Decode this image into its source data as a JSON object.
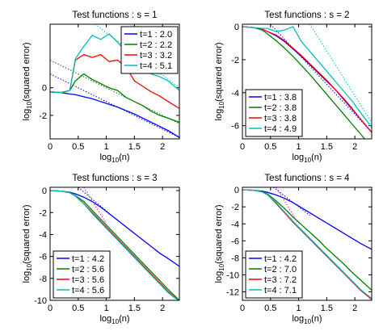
{
  "chart_data": [
    {
      "type": "line",
      "title": "Test functions : s = 1",
      "xlabel": [
        "log",
        "10",
        "(n)"
      ],
      "ylabel": [
        "log",
        "10",
        "(squared error)"
      ],
      "x": [
        0,
        0.2,
        0.35,
        0.45,
        0.6,
        0.75,
        0.9,
        1.05,
        1.2,
        1.35,
        1.5,
        1.65,
        1.8,
        1.95,
        2.1,
        2.3
      ],
      "xlim": [
        0,
        2.3
      ],
      "xticks": [
        0,
        0.5,
        1,
        1.5,
        2
      ],
      "ylim": [
        -3.7,
        4.6
      ],
      "yticks": [
        -2,
        0
      ],
      "legend": "upper right",
      "series": [
        {
          "name": "t=1 : 2.0",
          "color": "#0000ff",
          "values": [
            -0.3,
            -0.35,
            -0.45,
            -0.5,
            -0.65,
            -0.8,
            -1,
            -1.2,
            -1.4,
            -1.65,
            -1.9,
            -2.2,
            -2.5,
            -2.8,
            -3.1,
            -3.6
          ]
        },
        {
          "name": "t=2 : 2.2",
          "color": "#007f00",
          "values": [
            -0.3,
            -0.35,
            -0.2,
            0.5,
            1.0,
            0.6,
            0.3,
            0.0,
            -0.2,
            -0.7,
            -1.0,
            -1.3,
            -1.7,
            -2.0,
            -2.2,
            -2.5
          ]
        },
        {
          "name": "t=3 : 3.2",
          "color": "#ff0000",
          "values": [
            -0.3,
            -0.35,
            -0.2,
            2.0,
            2.4,
            2.2,
            2.4,
            1.9,
            2.0,
            1.5,
            0.5,
            0.1,
            -0.3,
            -0.6,
            -1.0,
            -1.5
          ]
        },
        {
          "name": "t=4 : 5.1",
          "color": "#00bfbf",
          "values": [
            -0.3,
            -0.35,
            -0.2,
            2.1,
            3.0,
            3.8,
            3.5,
            3.9,
            3.3,
            2.6,
            2.0,
            1.6,
            1.0,
            0.8,
            0.5,
            -0.2
          ]
        }
      ],
      "fits": [
        {
          "color": "#0000ff",
          "x": [
            0,
            2.3
          ],
          "values": [
            1,
            -3.6
          ]
        },
        {
          "color": "#007f00",
          "x": [
            0,
            2.3
          ],
          "values": [
            2,
            -2.6
          ]
        },
        {
          "color": "#00bfbf",
          "x": [
            0.8,
            2.3
          ],
          "values": [
            4.6,
            0
          ]
        }
      ]
    },
    {
      "type": "line",
      "title": "Test functions : s = 2",
      "xlabel": [
        "log",
        "10",
        "(n)"
      ],
      "ylabel": [
        "log",
        "10",
        "(squared error)"
      ],
      "x": [
        0,
        0.2,
        0.35,
        0.45,
        0.6,
        0.75,
        0.9,
        1.05,
        1.2,
        1.35,
        1.5,
        1.65,
        1.8,
        1.95,
        2.1,
        2.3
      ],
      "xlim": [
        0,
        2.3
      ],
      "xticks": [
        0,
        0.5,
        1,
        1.5,
        2
      ],
      "ylim": [
        -6.8,
        0.15
      ],
      "yticks": [
        -6,
        -4,
        -2,
        0
      ],
      "legend": "lower left",
      "series": [
        {
          "name": "t=1 : 3.8",
          "color": "#0000ff",
          "values": [
            0,
            -0.05,
            -0.15,
            -0.3,
            -0.55,
            -0.9,
            -1.35,
            -1.8,
            -2.3,
            -2.8,
            -3.3,
            -3.8,
            -4.4,
            -5.0,
            -5.6,
            -6.4
          ]
        },
        {
          "name": "t=2 : 3.8",
          "color": "#007f00",
          "values": [
            0,
            -0.05,
            -0.2,
            -0.45,
            -0.85,
            -1.3,
            -1.8,
            -2.35,
            -2.9,
            -3.5,
            -4.1,
            -4.7,
            -5.3,
            -5.9,
            -6.5,
            -7.3
          ]
        },
        {
          "name": "t=3 : 3.8",
          "color": "#ff0000",
          "values": [
            0,
            -0.05,
            -0.15,
            -0.3,
            -0.5,
            -0.85,
            -1.3,
            -1.75,
            -2.25,
            -2.75,
            -3.25,
            -3.8,
            -4.35,
            -4.95,
            -5.6,
            -6.4
          ]
        },
        {
          "name": "t=4 : 4.9",
          "color": "#00bfbf",
          "values": [
            0,
            -0.05,
            -0.1,
            -0.1,
            -0.3,
            -0.2,
            0,
            -0.9,
            -1.5,
            -2.1,
            -2.7,
            -3.3,
            -3.9,
            -4.5,
            -5.2,
            -6.1
          ]
        }
      ],
      "fits": [
        {
          "color": "#0000ff",
          "x": [
            0.5,
            2.3
          ],
          "values": [
            0.15,
            -6.4
          ]
        },
        {
          "color": "#00bfbf",
          "x": [
            1.2,
            2.3
          ],
          "values": [
            0.15,
            -5.8
          ]
        }
      ]
    },
    {
      "type": "line",
      "title": "Test functions : s = 3",
      "xlabel": [
        "log",
        "10",
        "(n)"
      ],
      "ylabel": [
        "log",
        "10",
        "(squared error)"
      ],
      "x": [
        0,
        0.2,
        0.35,
        0.45,
        0.6,
        0.75,
        0.9,
        1.05,
        1.2,
        1.35,
        1.5,
        1.65,
        1.8,
        1.95,
        2.1,
        2.3
      ],
      "xlim": [
        0,
        2.3
      ],
      "xticks": [
        0,
        0.5,
        1,
        1.5,
        2
      ],
      "ylim": [
        -10,
        0.3
      ],
      "yticks": [
        -10,
        -8,
        -6,
        -4,
        -2,
        0
      ],
      "legend": "lower left",
      "series": [
        {
          "name": "t=1 : 4.2",
          "color": "#0000ff",
          "values": [
            0,
            -0.05,
            -0.15,
            -0.3,
            -0.6,
            -1.0,
            -1.5,
            -2.1,
            -2.7,
            -3.3,
            -3.9,
            -4.5,
            -5.1,
            -5.7,
            -6.2,
            -6.9
          ]
        },
        {
          "name": "t=2 : 5.6",
          "color": "#007f00",
          "values": [
            0,
            -0.05,
            -0.2,
            -0.45,
            -1.0,
            -1.8,
            -2.6,
            -3.4,
            -4.2,
            -5.0,
            -5.8,
            -6.6,
            -7.4,
            -8.2,
            -9.0,
            -10
          ]
        },
        {
          "name": "t=3 : 5.6",
          "color": "#ff0000",
          "values": [
            0,
            -0.05,
            -0.2,
            -0.5,
            -1.2,
            -2.0,
            -2.8,
            -3.6,
            -4.4,
            -5.2,
            -6.0,
            -6.8,
            -7.6,
            -8.4,
            -9.2,
            -10.1
          ]
        },
        {
          "name": "t=4 : 5.6",
          "color": "#00bfbf",
          "values": [
            0,
            -0.05,
            -0.2,
            -0.5,
            -1.2,
            -2.1,
            -2.9,
            -3.7,
            -4.5,
            -5.3,
            -6.1,
            -6.9,
            -7.7,
            -8.5,
            -9.3,
            -10.1
          ]
        }
      ],
      "fits": [
        {
          "color": "#0000ff",
          "x": [
            0.5,
            1.2
          ],
          "values": [
            0.3,
            -2.7
          ]
        },
        {
          "color": "#ff00ff",
          "x": [
            0.6,
            1.0
          ],
          "values": [
            0.3,
            -3.0
          ]
        }
      ]
    },
    {
      "type": "line",
      "title": "Test functions : s = 4",
      "xlabel": [
        "log",
        "10",
        "(n)"
      ],
      "ylabel": [
        "log",
        "10",
        "(squared error)"
      ],
      "x": [
        0,
        0.2,
        0.35,
        0.45,
        0.6,
        0.75,
        0.9,
        1.05,
        1.2,
        1.35,
        1.5,
        1.65,
        1.8,
        1.95,
        2.1,
        2.3
      ],
      "xlim": [
        0,
        2.3
      ],
      "xticks": [
        0,
        0.5,
        1,
        1.5,
        2
      ],
      "ylim": [
        -13,
        0.3
      ],
      "yticks": [
        -12,
        -10,
        -8,
        -6,
        -4,
        -2,
        0
      ],
      "legend": "lower left",
      "series": [
        {
          "name": "t=1 : 4.2",
          "color": "#0000ff",
          "values": [
            0,
            -0.05,
            -0.15,
            -0.3,
            -0.6,
            -1.0,
            -1.5,
            -2.1,
            -2.7,
            -3.3,
            -3.9,
            -4.5,
            -5.1,
            -5.7,
            -6.3,
            -7.0
          ]
        },
        {
          "name": "t=2 : 7.0",
          "color": "#007f00",
          "values": [
            0,
            -0.05,
            -0.2,
            -0.5,
            -1.3,
            -2.2,
            -3.2,
            -4.1,
            -5.0,
            -5.9,
            -6.9,
            -7.8,
            -8.7,
            -9.7,
            -10.6,
            -11.8
          ]
        },
        {
          "name": "t=3 : 7.2",
          "color": "#ff0000",
          "values": [
            0,
            -0.05,
            -0.25,
            -0.6,
            -1.6,
            -2.7,
            -3.8,
            -4.8,
            -5.8,
            -6.8,
            -7.8,
            -8.8,
            -9.8,
            -10.8,
            -11.8,
            -12.9
          ]
        },
        {
          "name": "t=4 : 7.1",
          "color": "#00bfbf",
          "values": [
            0,
            -0.05,
            -0.25,
            -0.6,
            -1.5,
            -2.6,
            -3.7,
            -4.7,
            -5.7,
            -6.7,
            -7.7,
            -8.7,
            -9.7,
            -10.7,
            -11.7,
            -12.8
          ]
        }
      ],
      "fits": [
        {
          "color": "#0000ff",
          "x": [
            0.55,
            1.2
          ],
          "values": [
            0.3,
            -3.0
          ]
        },
        {
          "color": "#ff00ff",
          "x": [
            0.6,
            1.0
          ],
          "values": [
            0.3,
            -4.0
          ]
        }
      ]
    }
  ]
}
